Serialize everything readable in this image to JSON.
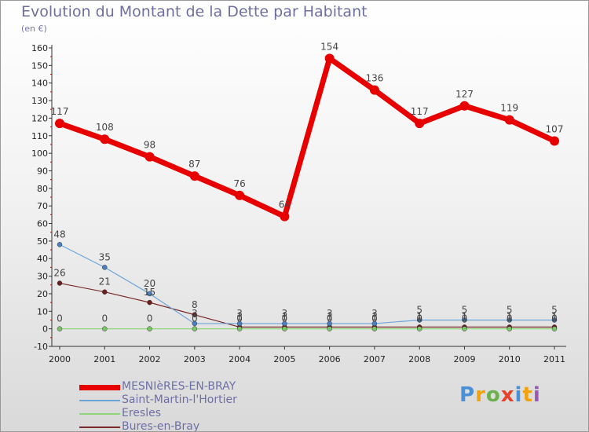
{
  "title": "Evolution du Montant de la Dette par Habitant",
  "subtitle": "(en €)",
  "logo": {
    "text": "Proxiti",
    "colors": [
      "#4a90d9",
      "#f2a20d",
      "#6ab04c",
      "#e8402a",
      "#4a90d9",
      "#f2a20d",
      "#9b59b6"
    ]
  },
  "chart_data": {
    "type": "line",
    "categories": [
      "2000",
      "2001",
      "2002",
      "2003",
      "2004",
      "2005",
      "2006",
      "2007",
      "2008",
      "2009",
      "2010",
      "2011"
    ],
    "ylim": [
      -10,
      160
    ],
    "yticks": [
      -10,
      0,
      10,
      20,
      30,
      40,
      50,
      60,
      70,
      80,
      90,
      100,
      110,
      120,
      130,
      140,
      150,
      160
    ],
    "grid": false,
    "legend_position": "bottom-left",
    "series": [
      {
        "name": "MESNIèRES-EN-BRAY",
        "color": "#e80000",
        "width": 7,
        "marker": 6,
        "values": [
          117,
          108,
          98,
          87,
          76,
          64,
          154,
          136,
          117,
          127,
          119,
          107
        ],
        "labels": [
          "117",
          "108",
          "98",
          "87",
          "76",
          "64",
          "154",
          "136",
          "117",
          "127",
          "119",
          "107"
        ]
      },
      {
        "name": "Saint-Martin-l'Hortier",
        "color": "#6da5d8",
        "width": 1.2,
        "marker": 3,
        "values": [
          48,
          35,
          20,
          3,
          3,
          3,
          3,
          3,
          5,
          5,
          5,
          5
        ],
        "labels": [
          "48",
          "35",
          "20",
          "3",
          "3",
          "3",
          "3",
          "3",
          "5",
          "5",
          "5",
          "5"
        ]
      },
      {
        "name": "Eresles",
        "color": "#8fd67a",
        "width": 1.2,
        "marker": 3,
        "values": [
          0,
          0,
          0,
          0,
          0,
          0,
          0,
          0,
          0,
          0,
          0,
          0
        ],
        "labels": [
          "0",
          "0",
          "0",
          "0",
          "0",
          "0",
          "0",
          "0",
          "0",
          "0",
          "0",
          "0"
        ]
      },
      {
        "name": "Bures-en-Bray",
        "color": "#7a2a2a",
        "width": 1.2,
        "marker": 3,
        "values": [
          26,
          21,
          15,
          8,
          1,
          1,
          1,
          1,
          1,
          1,
          1,
          1
        ],
        "labels": [
          "26",
          "21",
          "15",
          "8",
          "1",
          "1",
          "1",
          "1",
          "1",
          "1",
          "1",
          "1"
        ]
      }
    ]
  }
}
